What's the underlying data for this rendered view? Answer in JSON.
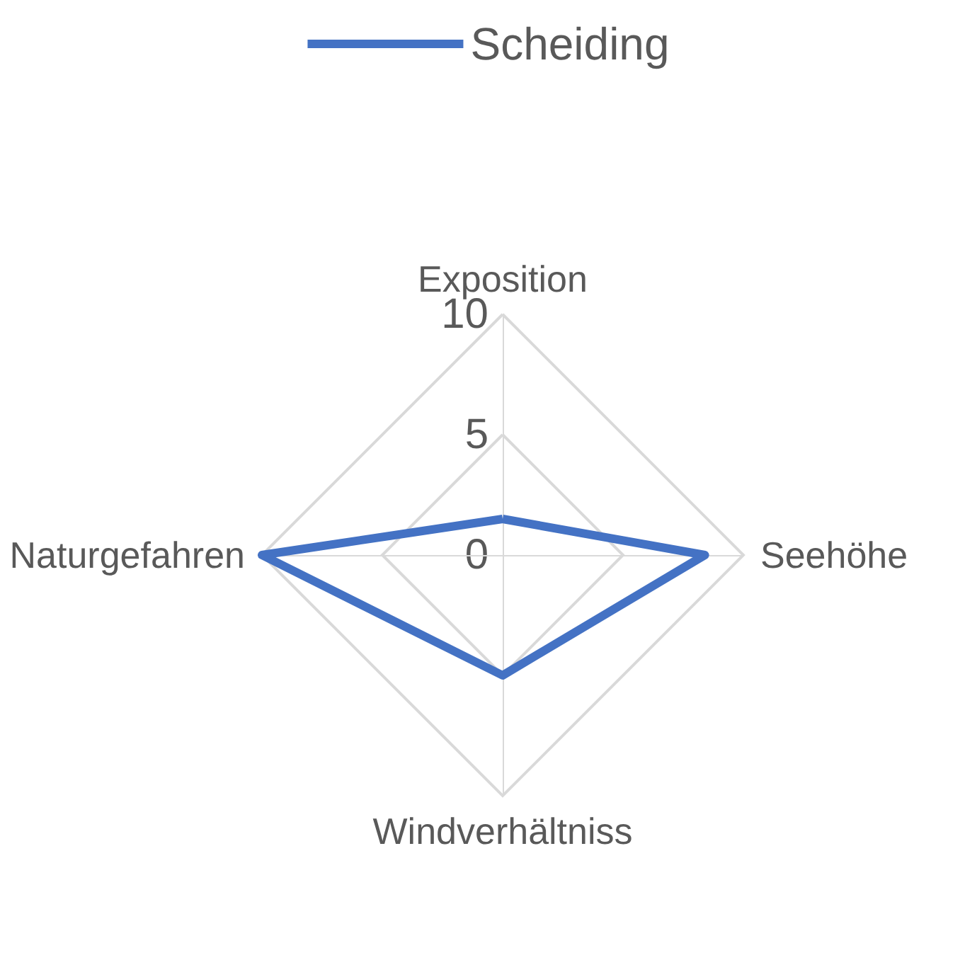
{
  "chart_data": {
    "type": "radar",
    "categories": [
      "Exposition",
      "Seehöhe",
      "Windverhältniss",
      "Naturgefahren"
    ],
    "series": [
      {
        "name": "Scheiding",
        "color": "#4472c4",
        "values": [
          1.5,
          8.4,
          5,
          10
        ]
      }
    ],
    "ylim": [
      0,
      10
    ],
    "yticks": [
      0,
      5,
      10
    ],
    "grid": true,
    "legend": "top",
    "marker": "none"
  }
}
